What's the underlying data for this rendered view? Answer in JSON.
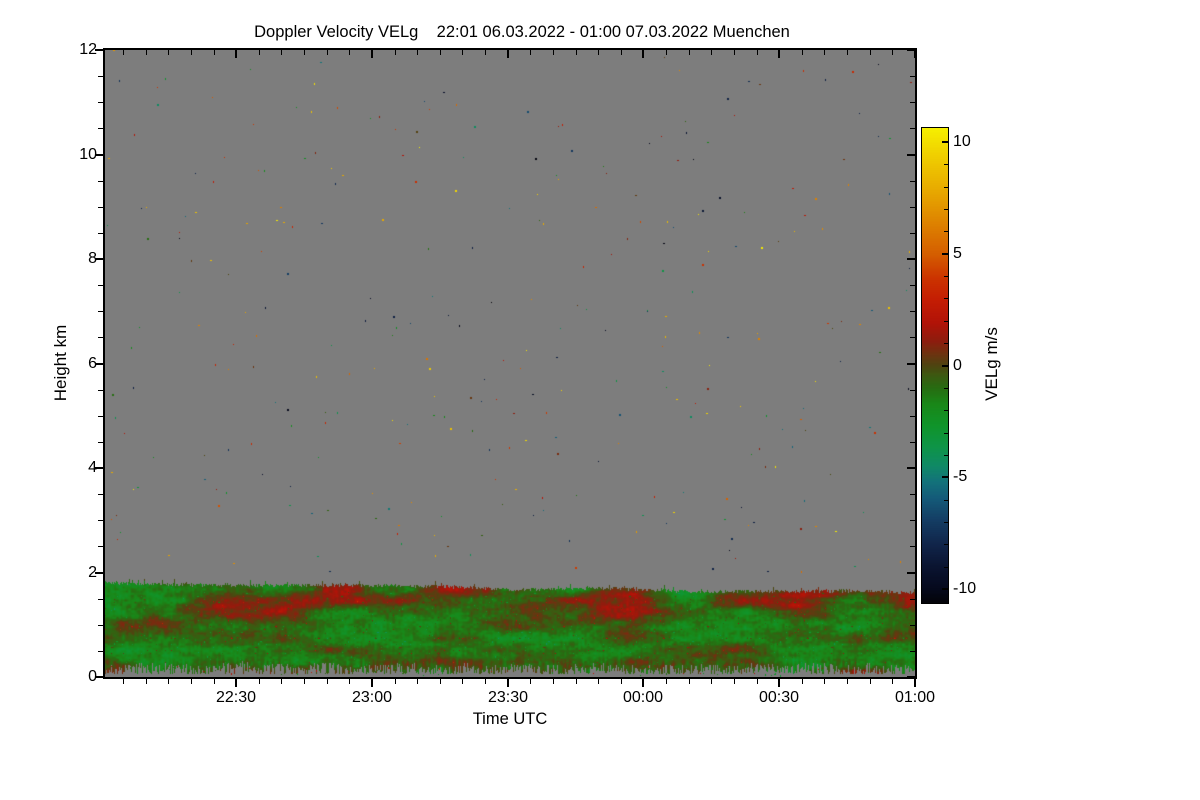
{
  "chart_data": {
    "type": "heatmap",
    "title": "Doppler Velocity VELg    22:01 06.03.2022 - 01:00 07.03.2022 Muenchen",
    "quantity": "Doppler Velocity VELg",
    "time_range": "22:01 06.03.2022 - 01:00 07.03.2022",
    "station": "Muenchen",
    "xlabel": "Time UTC",
    "ylabel": "Height km",
    "x_axis": {
      "start_label": "22:01",
      "end_label": "01:00",
      "total_minutes": 179,
      "major_ticks": [
        {
          "offset_min": 29,
          "label": "22:30"
        },
        {
          "offset_min": 59,
          "label": "23:00"
        },
        {
          "offset_min": 89,
          "label": "23:30"
        },
        {
          "offset_min": 119,
          "label": "00:00"
        },
        {
          "offset_min": 149,
          "label": "00:30"
        },
        {
          "offset_min": 179,
          "label": "01:00"
        }
      ],
      "minor_step_min": 5,
      "first_minor_offset_min": 4
    },
    "y_axis": {
      "min": 0,
      "max": 12,
      "major_ticks": [
        0,
        2,
        4,
        6,
        8,
        10,
        12
      ],
      "minor_step": 0.5
    },
    "colorbar": {
      "label": "VELg m/s",
      "min": -10.63,
      "max": 10.63,
      "major_ticks": [
        10,
        5,
        0,
        -5,
        -10
      ],
      "minor_step": 1,
      "stops": [
        [
          -10.63,
          "#04040a"
        ],
        [
          -10.0,
          "#060a1e"
        ],
        [
          -9.0,
          "#0b1532"
        ],
        [
          -8.0,
          "#11264b"
        ],
        [
          -7.0,
          "#143c63"
        ],
        [
          -6.0,
          "#155a79"
        ],
        [
          -5.2,
          "#13737b"
        ],
        [
          -4.5,
          "#108a66"
        ],
        [
          -3.7,
          "#0e944a"
        ],
        [
          -2.7,
          "#10952b"
        ],
        [
          -1.7,
          "#1a8718"
        ],
        [
          -1.0,
          "#286c12"
        ],
        [
          -0.4,
          "#3f5811"
        ],
        [
          0.0,
          "#4e4510"
        ],
        [
          0.5,
          "#6d3410"
        ],
        [
          1.1,
          "#8e1d0e"
        ],
        [
          1.9,
          "#b21308"
        ],
        [
          2.9,
          "#c41d04"
        ],
        [
          3.9,
          "#cc3300"
        ],
        [
          5.0,
          "#d55f00"
        ],
        [
          6.5,
          "#df8600"
        ],
        [
          8.0,
          "#e9ae00"
        ],
        [
          9.4,
          "#f0cf00"
        ],
        [
          10.63,
          "#f6f000"
        ]
      ]
    },
    "missing_data_color": "#7d7d7d",
    "frame_color": "#000000",
    "band": {
      "description": "Boundary-layer Doppler velocity band: mostly -3 to +2 m/s, green with red-brown patches",
      "top_km_left": 1.81,
      "top_km_right": 1.62,
      "solid_bottom_km": 0.27,
      "spike_bottom_km": 0.06,
      "mean_velocity_ms": -0.9
    },
    "noise_speckles": {
      "count": 310,
      "height_km_range": [
        1.9,
        12.0
      ]
    }
  }
}
